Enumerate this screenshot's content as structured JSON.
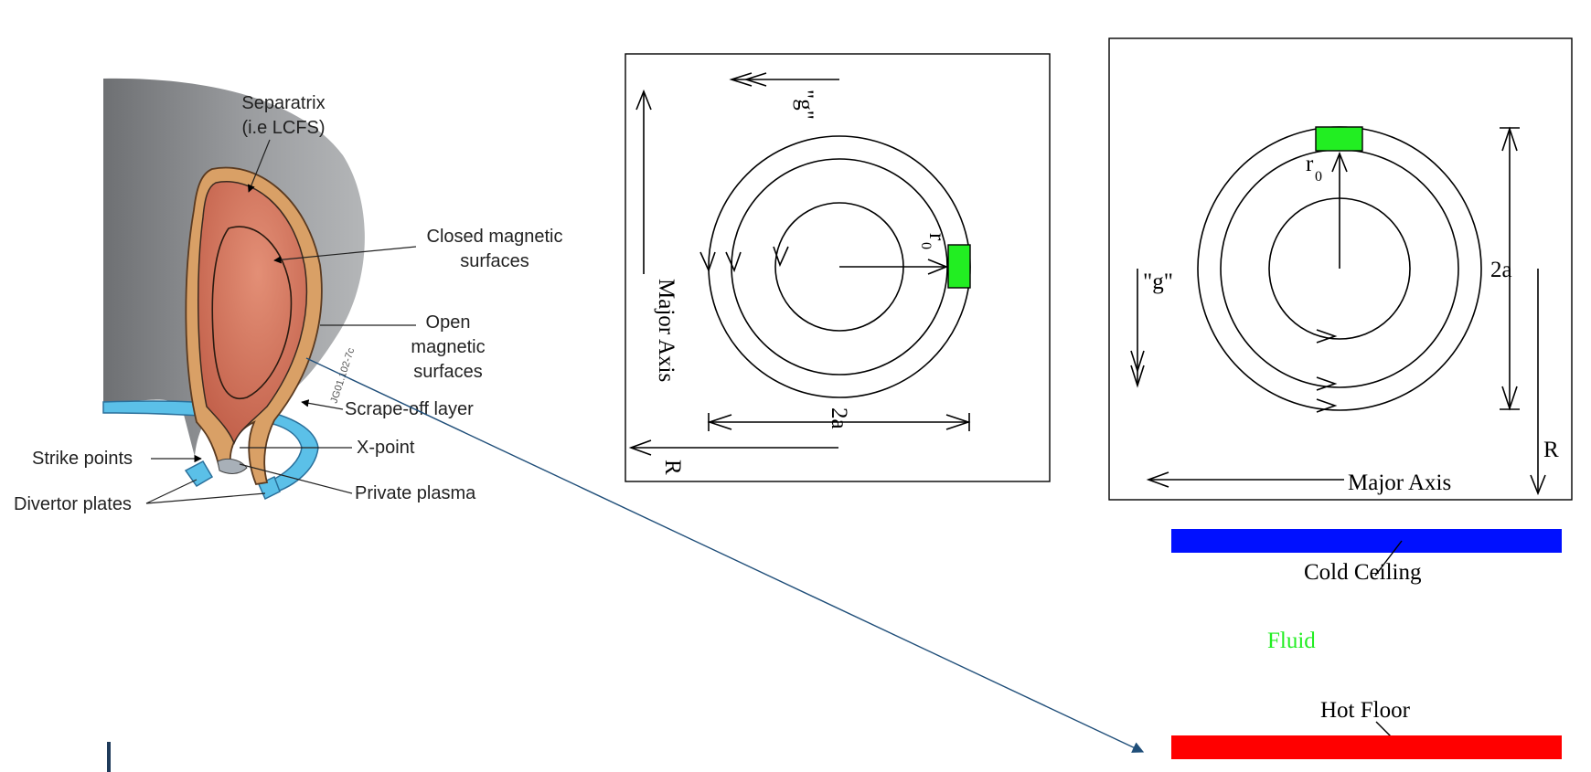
{
  "colors": {
    "plasma_core": "#cf6f55",
    "scrape_off": "#d9a066",
    "vessel_gray": "#8c8e91",
    "divertor": "#5bc0e8",
    "arrow_line": "#1f4e79",
    "probe_green": "#22ee22",
    "ceiling_blue": "#0010ff",
    "floor_red": "#ff0000",
    "fluid_green": "#22ee22"
  },
  "tokamak": {
    "separatrix": "Separatrix",
    "lcfs": "(i.e LCFS)",
    "closed1": "Closed magnetic",
    "closed2": "surfaces",
    "open1": "Open",
    "open2": "magnetic",
    "open3": "surfaces",
    "scrape": "Scrape-off layer",
    "xpoint": "X-point",
    "strike": "Strike points",
    "divertor": "Divertor plates",
    "private": "Private plasma",
    "code": "JG01.102-7c"
  },
  "schem1": {
    "g": "\"g\"",
    "major_axis": "Major  Axis",
    "r0": "r",
    "r0_sub": "0",
    "two_a": "2a",
    "R": "R"
  },
  "schem2": {
    "g": "\"g\"",
    "r0": "r",
    "r0_sub": "0",
    "two_a": "2a",
    "R": "R",
    "major_axis": "Major  Axis"
  },
  "convection": {
    "cold": "Cold  Ceiling",
    "fluid": "Fluid",
    "hot": "Hot  Floor"
  }
}
